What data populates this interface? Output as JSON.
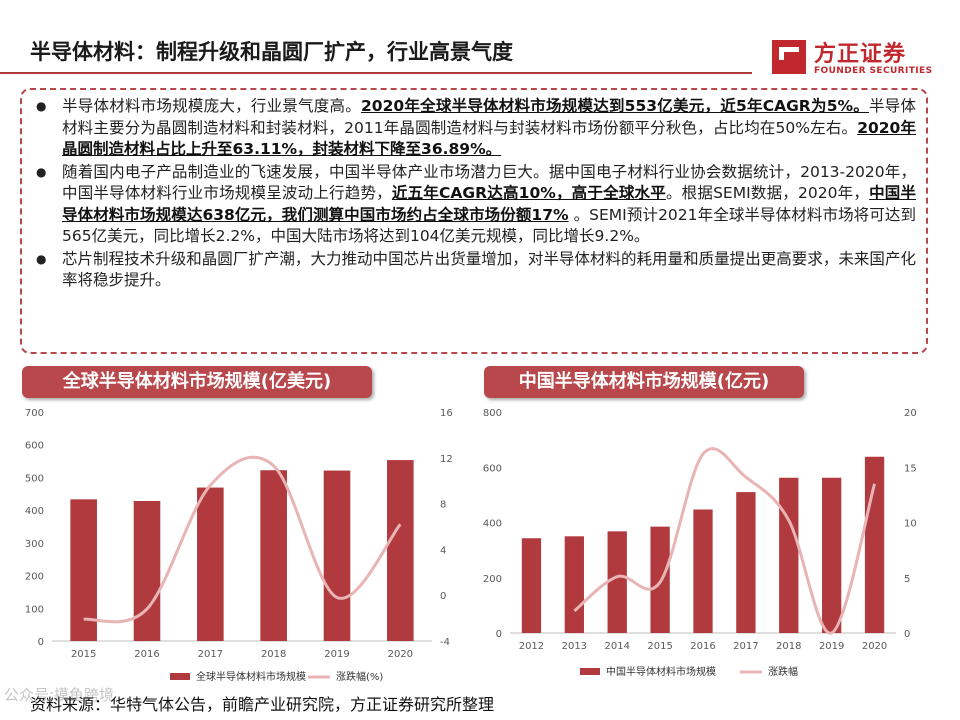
{
  "header": {
    "title": "半导体材料：制程升级和晶圆厂扩产，行业高景气度",
    "logo_cn": "方正证券",
    "logo_en": "FOUNDER SECURITIES"
  },
  "bullets": [
    [
      {
        "t": "半导体材料市场规模庞大，行业景气度高。",
        "h": false
      },
      {
        "t": "2020年全球半导体材料市场规模达到553亿美元，近5年CAGR为5%。",
        "h": true
      },
      {
        "t": "半导体材料主要分为晶圆制造材料和封装材料，2011年晶圆制造材料与封装材料市场份额平分秋色，占比均在50%左右。",
        "h": false
      },
      {
        "t": "2020年晶圆制造材料占比上升至63.11%，封装材料下降至36.89%。",
        "h": true
      }
    ],
    [
      {
        "t": "随着国内电子产品制造业的飞速发展，中国半导体产业市场潜力巨大。据中国电子材料行业协会数据统计，2013-2020年，中国半导体材料行业市场规模呈波动上行趋势，",
        "h": false
      },
      {
        "t": "近五年CAGR达高10%，高于全球水平",
        "h": true
      },
      {
        "t": "。根据SEMI数据，2020年，",
        "h": false
      },
      {
        "t": "中国半导体材料市场规模达638亿元，我们测算中国市场约占全球市场份额17%",
        "h": true
      },
      {
        "t": " 。SEMI预计2021年全球半导体材料市场将可达到565亿美元，同比增长2.2%，中国大陆市场将达到104亿美元规模，同比增长9.2%。",
        "h": false
      }
    ],
    [
      {
        "t": "芯片制程技术升级和晶圆厂扩产潮，大力推动中国芯片出货量增加，对半导体材料的耗用量和质量提出更高要求，未来国产化率将稳步提升。",
        "h": false
      }
    ]
  ],
  "banners": {
    "left": "全球半导体材料市场规模(亿美元)",
    "right": "中国半导体材料市场规模(亿元)"
  },
  "chart_data": [
    {
      "type": "bar",
      "title": "全球半导体材料市场规模(亿美元)",
      "categories": [
        "2015",
        "2016",
        "2017",
        "2018",
        "2019",
        "2020"
      ],
      "series": [
        {
          "name": "全球半导体材料市场规模",
          "type": "bar",
          "axis": "left",
          "values": [
            433,
            428,
            469,
            522,
            521,
            553
          ]
        },
        {
          "name": "涨跌幅(%)",
          "type": "line",
          "axis": "right",
          "values": [
            -2.1,
            -1.2,
            9.6,
            11.3,
            -0.2,
            6.2
          ]
        }
      ],
      "ylim": [
        0,
        700
      ],
      "yticks": [
        0,
        100,
        200,
        300,
        400,
        500,
        600,
        700
      ],
      "y2lim": [
        -4,
        16
      ],
      "y2ticks": [
        -4,
        0,
        4,
        8,
        12,
        16
      ],
      "bar_color": "#b03a3e",
      "line_color": "#e8b4b4",
      "legend_position": "bottom"
    },
    {
      "type": "bar",
      "title": "中国半导体材料市场规模(亿元)",
      "categories": [
        "2012",
        "2013",
        "2014",
        "2015",
        "2016",
        "2017",
        "2018",
        "2019",
        "2020"
      ],
      "series": [
        {
          "name": "中国半导体材料市场规模",
          "type": "bar",
          "axis": "left",
          "values": [
            343,
            350,
            368,
            385,
            447,
            510,
            562,
            562,
            638
          ]
        },
        {
          "name": "涨跌幅",
          "type": "line",
          "axis": "right",
          "values": [
            null,
            2.0,
            5.1,
            4.6,
            16.2,
            14.1,
            10.2,
            0.0,
            13.5
          ]
        }
      ],
      "ylim": [
        0,
        800
      ],
      "yticks": [
        0,
        200,
        400,
        600,
        800
      ],
      "y2lim": [
        0,
        20
      ],
      "y2ticks": [
        0,
        5,
        10,
        15,
        20
      ],
      "bar_color": "#b03a3e",
      "line_color": "#e8b4b4",
      "legend_position": "bottom"
    }
  ],
  "source": "资料来源：华特气体公告，前瞻产业研究院，方正证券研究所整理",
  "watermark": "公众号:摸鱼跨境"
}
